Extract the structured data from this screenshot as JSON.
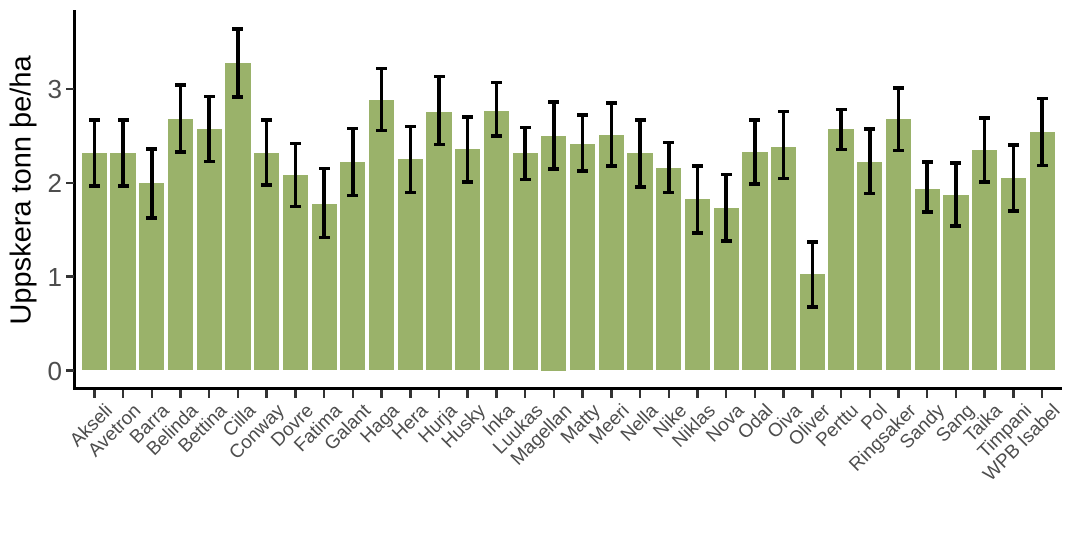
{
  "chart_data": {
    "type": "bar",
    "title": "",
    "xlabel": "",
    "ylabel": "Uppskera tonn þe/ha",
    "ylim": [
      0,
      3.84
    ],
    "y_ticks": [
      "0",
      "1",
      "2",
      "3"
    ],
    "grid": false,
    "legend": "none",
    "bar_color": "#9ab26a",
    "error_bar_color": "#000000",
    "axis_line_color": "#000000",
    "tick_color": "#333333",
    "tick_label_color": "#4d4d4d",
    "categories": [
      "Akseli",
      "Avetron",
      "Barra",
      "Belinda",
      "Bettina",
      "Cilla",
      "Conway",
      "Dovre",
      "Fatima",
      "Galant",
      "Haga",
      "Hera",
      "Hurja",
      "Husky",
      "Inka",
      "Luukas",
      "Magellan",
      "Matty",
      "Meeri",
      "Nella",
      "Nike",
      "Niklas",
      "Nova",
      "Odal",
      "Oiva",
      "Oliver",
      "Perttu",
      "Pol",
      "Ringsaker",
      "Sandy",
      "Sang",
      "Taika",
      "Timpani",
      "WPB Isabel"
    ],
    "values": [
      2.32,
      2.32,
      2.0,
      2.68,
      2.57,
      3.28,
      2.32,
      2.08,
      1.78,
      2.22,
      2.88,
      2.25,
      2.76,
      2.36,
      2.77,
      2.32,
      2.5,
      2.42,
      2.51,
      2.32,
      2.16,
      1.83,
      1.73,
      2.33,
      2.38,
      1.03,
      2.57,
      2.22,
      2.68,
      1.94,
      1.87,
      2.35,
      2.05,
      2.54
    ],
    "error_low": [
      1.96,
      1.96,
      1.62,
      2.32,
      2.22,
      2.91,
      1.97,
      1.74,
      1.41,
      1.86,
      2.55,
      1.89,
      2.4,
      2.0,
      2.49,
      2.03,
      2.14,
      2.12,
      2.17,
      1.95,
      1.89,
      1.46,
      1.37,
      1.98,
      2.04,
      0.67,
      2.35,
      1.88,
      2.34,
      1.68,
      1.53,
      2.0,
      1.69,
      2.18
    ],
    "error_high": [
      2.68,
      2.68,
      2.37,
      3.05,
      2.93,
      3.65,
      2.68,
      2.43,
      2.16,
      2.59,
      3.23,
      2.61,
      3.14,
      2.71,
      3.08,
      2.6,
      2.87,
      2.73,
      2.86,
      2.68,
      2.44,
      2.19,
      2.1,
      2.68,
      2.77,
      1.38,
      2.79,
      2.58,
      3.02,
      2.23,
      2.22,
      2.7,
      2.41,
      2.91
    ]
  }
}
